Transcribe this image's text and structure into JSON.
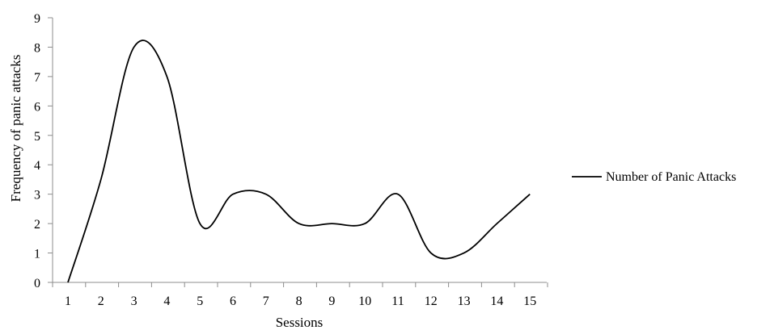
{
  "chart_data": {
    "type": "line",
    "title": "",
    "xlabel": "Sessions",
    "ylabel": "Frequency of panic attacks",
    "categories": [
      "1",
      "2",
      "3",
      "4",
      "5",
      "6",
      "7",
      "8",
      "9",
      "10",
      "11",
      "12",
      "13",
      "14",
      "15"
    ],
    "series": [
      {
        "name": "Number of Panic Attacks",
        "values": [
          0,
          3.5,
          8,
          7,
          2,
          3,
          3,
          2,
          2,
          2,
          3,
          1,
          1,
          2,
          3
        ],
        "color": "#000000"
      }
    ],
    "ylim": [
      0,
      9
    ],
    "yticks": [
      "0",
      "1",
      "2",
      "3",
      "4",
      "5",
      "6",
      "7",
      "8",
      "9"
    ],
    "smoothed": true,
    "grid": false,
    "legend_position": "right"
  }
}
